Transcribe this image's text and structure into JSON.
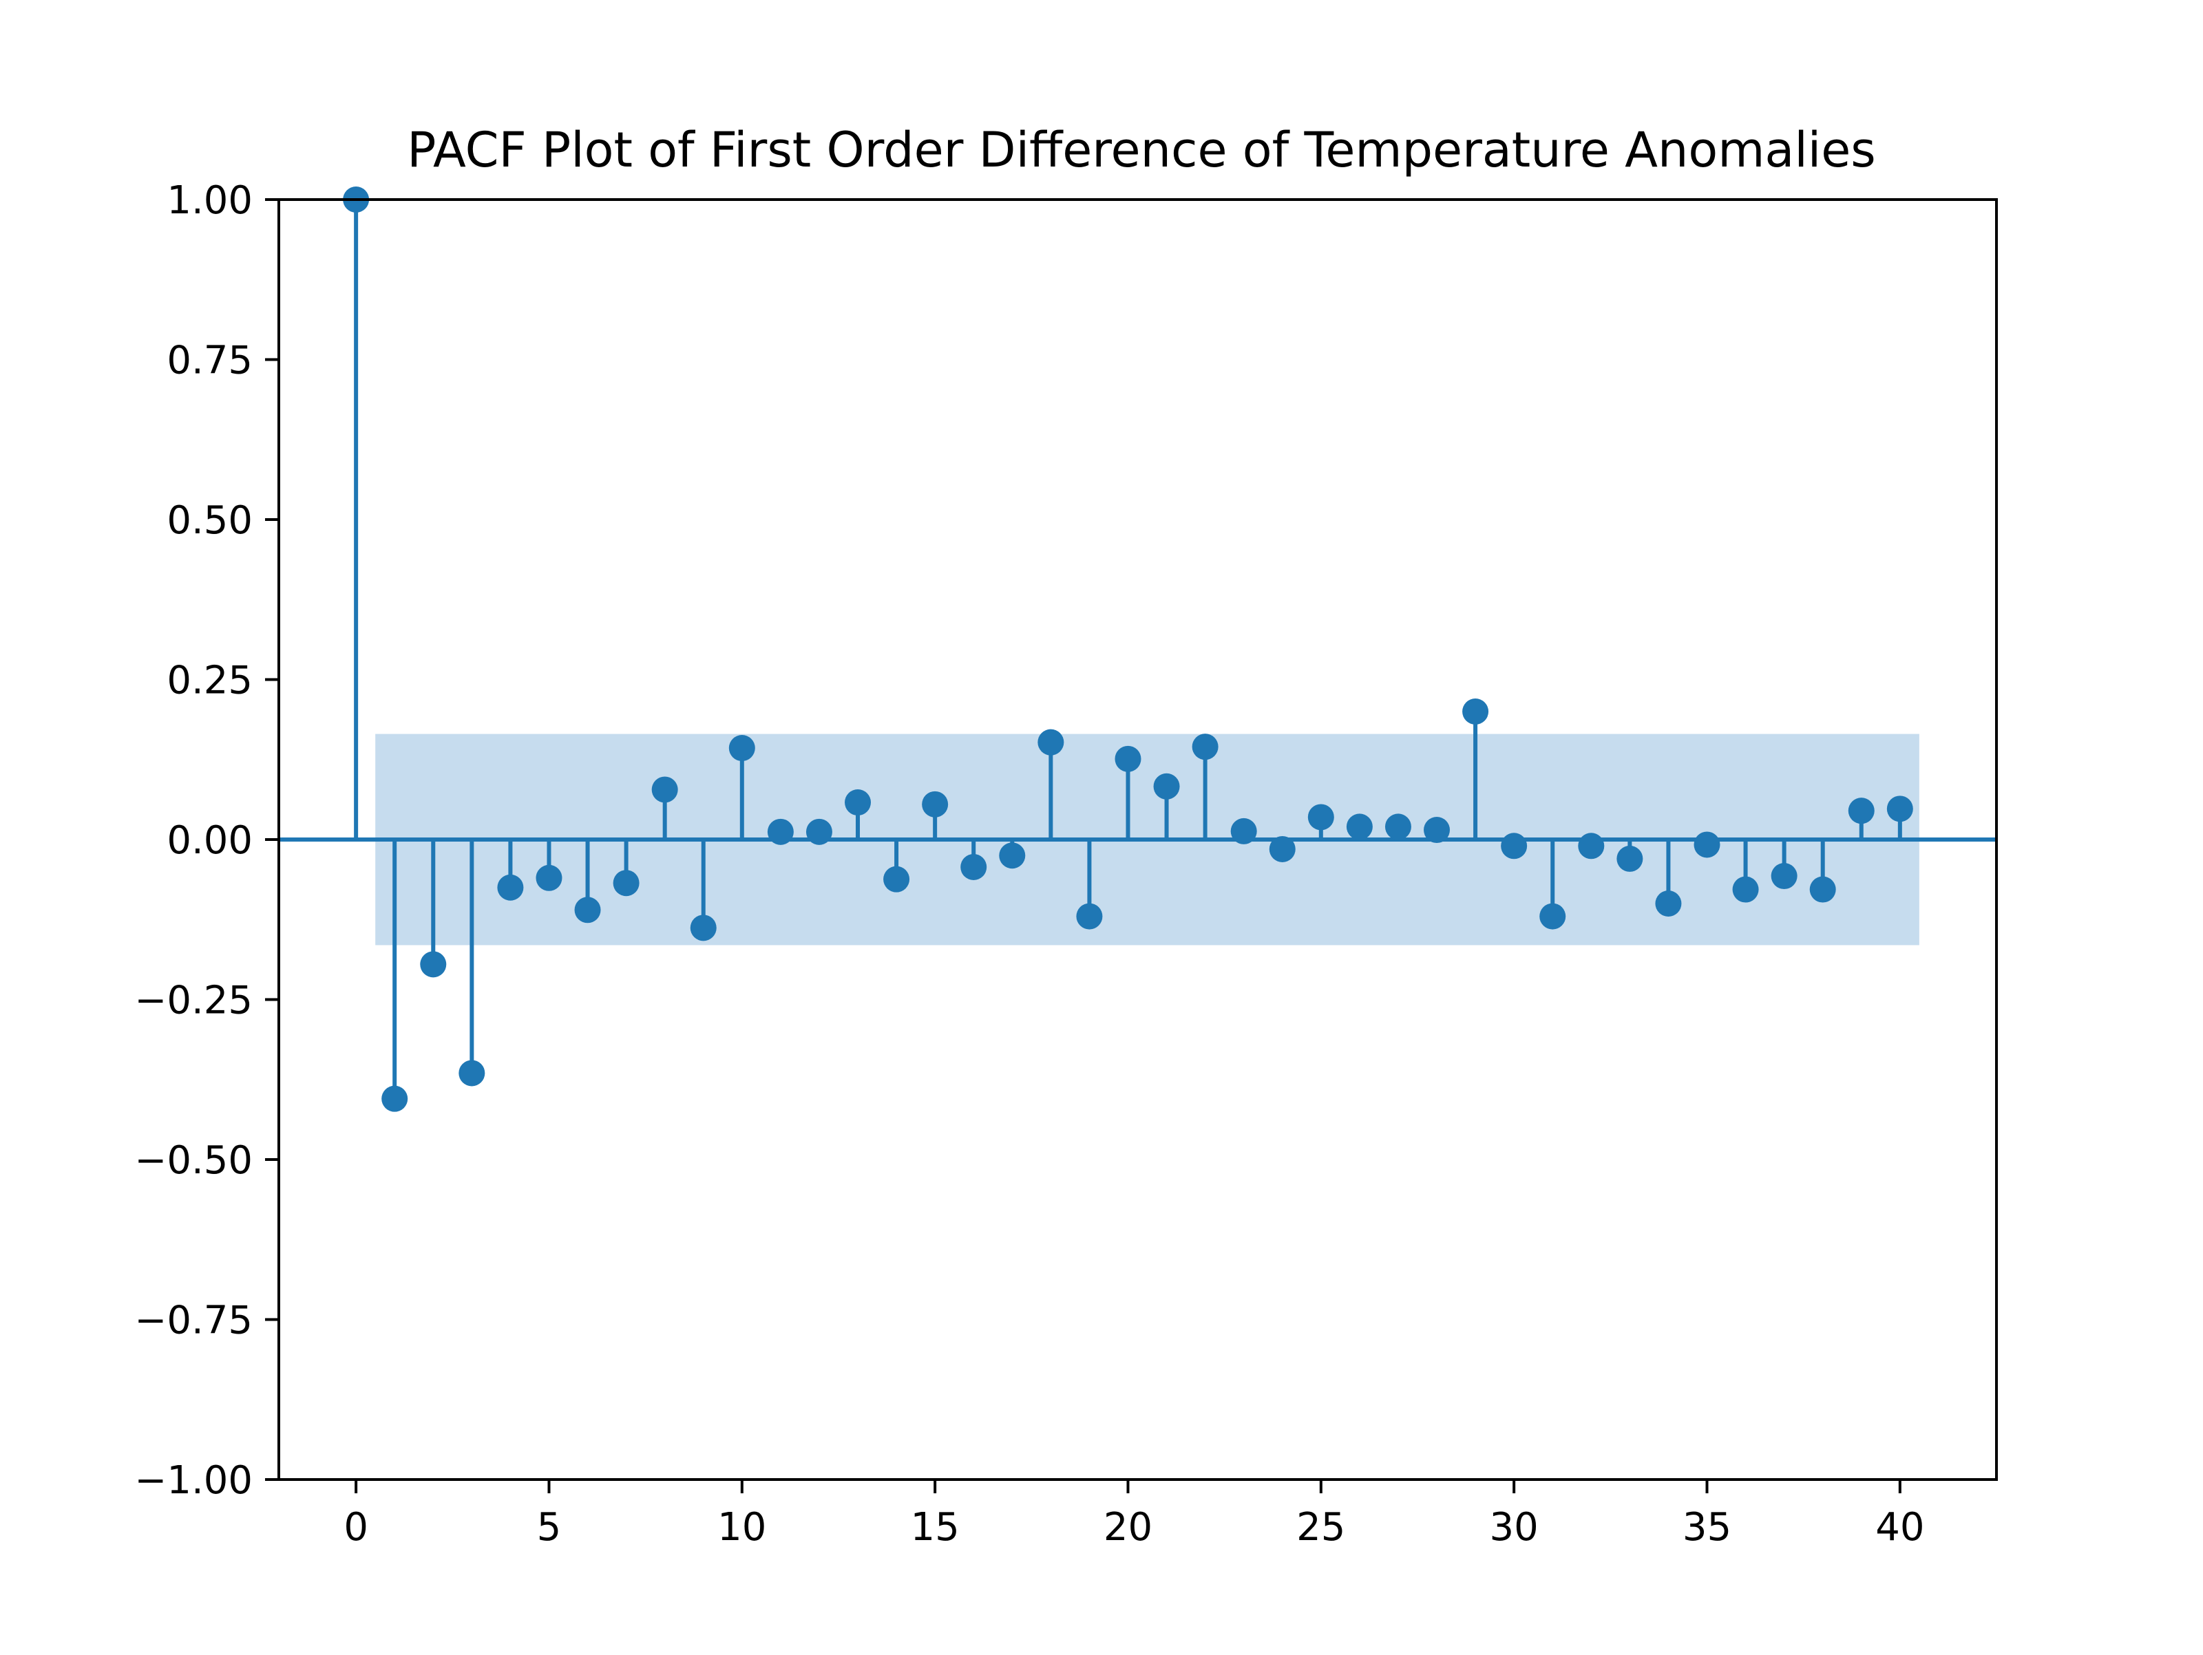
{
  "chart_data": {
    "type": "stem",
    "title": "PACF Plot of First Order Difference of Temperature Anomalies",
    "xlabel": "",
    "ylabel": "",
    "xlim": [
      -2,
      42.5
    ],
    "ylim": [
      -1.0,
      1.0
    ],
    "x_ticks": [
      0,
      5,
      10,
      15,
      20,
      25,
      30,
      35,
      40
    ],
    "y_ticks": [
      -1.0,
      -0.75,
      -0.5,
      -0.25,
      0.0,
      0.25,
      0.5,
      0.75,
      1.0
    ],
    "x_tick_labels": [
      "0",
      "5",
      "10",
      "15",
      "20",
      "25",
      "30",
      "35",
      "40"
    ],
    "y_tick_labels": [
      "−1.00",
      "−0.75",
      "−0.50",
      "−0.25",
      "0.00",
      "0.25",
      "0.50",
      "0.75",
      "1.00"
    ],
    "grid": false,
    "confidence_band": {
      "lower": -0.165,
      "upper": 0.165,
      "x_start": 0.5,
      "x_end": 40.5
    },
    "colors": {
      "stem": "#1f77b4",
      "band": "#c6dcee",
      "axes": "#000000"
    },
    "lags": [
      0,
      1,
      2,
      3,
      4,
      5,
      6,
      7,
      8,
      9,
      10,
      11,
      12,
      13,
      14,
      15,
      16,
      17,
      18,
      19,
      20,
      21,
      22,
      23,
      24,
      25,
      26,
      27,
      28,
      29,
      30,
      31,
      32,
      33,
      34,
      35,
      36,
      37,
      38,
      39,
      40
    ],
    "values": [
      1.0,
      -0.405,
      -0.195,
      -0.365,
      -0.075,
      -0.06,
      -0.11,
      -0.068,
      0.078,
      -0.138,
      0.143,
      0.012,
      0.012,
      0.058,
      -0.062,
      0.055,
      -0.043,
      -0.025,
      0.152,
      -0.12,
      0.126,
      0.083,
      0.145,
      0.013,
      -0.015,
      0.035,
      0.02,
      0.02,
      0.015,
      0.2,
      -0.01,
      -0.12,
      -0.01,
      -0.03,
      -0.1,
      -0.008,
      -0.078,
      -0.057,
      -0.078,
      0.045,
      0.048
    ]
  }
}
